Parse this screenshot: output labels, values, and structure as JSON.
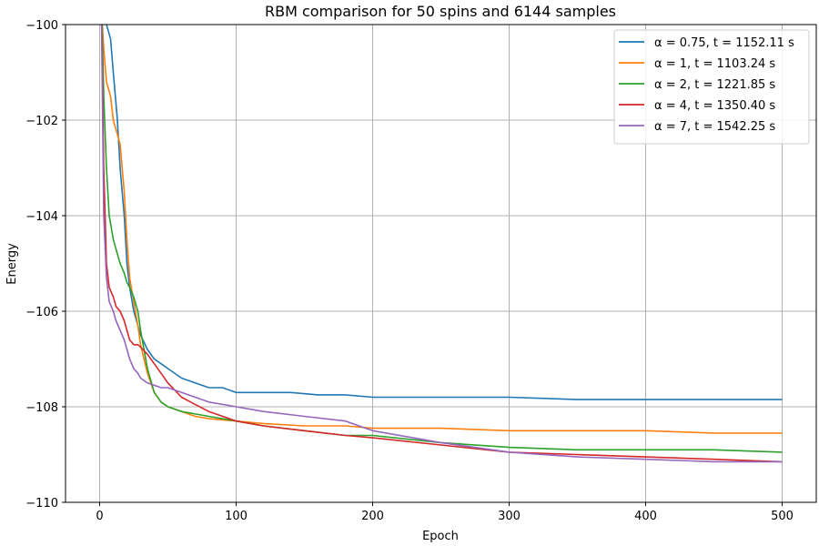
{
  "chart_data": {
    "type": "line",
    "title": "RBM comparison for 50 spins and 6144 samples",
    "xlabel": "Epoch",
    "ylabel": "Energy",
    "xlim": [
      -25,
      525
    ],
    "ylim": [
      -110,
      -100
    ],
    "xticks": [
      0,
      100,
      200,
      300,
      400,
      500
    ],
    "yticks": [
      -110,
      -108,
      -106,
      -104,
      -102,
      -100
    ],
    "xtick_labels": [
      "0",
      "100",
      "200",
      "300",
      "400",
      "500"
    ],
    "ytick_labels": [
      "−110",
      "−108",
      "−106",
      "−104",
      "−102",
      "−100"
    ],
    "grid": true,
    "legend_position": "top-right",
    "series": [
      {
        "name": "α = 0.75, t = 1152.11 s",
        "color": "#1f77b4",
        "x": [
          1,
          3,
          5,
          8,
          10,
          13,
          15,
          18,
          20,
          22,
          25,
          28,
          30,
          35,
          40,
          45,
          50,
          60,
          70,
          80,
          90,
          100,
          120,
          140,
          160,
          180,
          200,
          250,
          300,
          350,
          400,
          450,
          500
        ],
        "y": [
          -99.0,
          -99.5,
          -100.0,
          -100.3,
          -101.0,
          -102.0,
          -103.0,
          -104.0,
          -105.0,
          -105.5,
          -106.0,
          -106.3,
          -106.5,
          -106.8,
          -107.0,
          -107.1,
          -107.2,
          -107.4,
          -107.5,
          -107.6,
          -107.6,
          -107.7,
          -107.7,
          -107.7,
          -107.75,
          -107.75,
          -107.8,
          -107.8,
          -107.8,
          -107.85,
          -107.85,
          -107.85,
          -107.85
        ]
      },
      {
        "name": "α = 1, t = 1103.24 s",
        "color": "#ff7f0e",
        "x": [
          1,
          3,
          5,
          8,
          10,
          12,
          15,
          18,
          20,
          22,
          25,
          28,
          30,
          35,
          40,
          45,
          50,
          60,
          70,
          80,
          100,
          120,
          150,
          180,
          200,
          250,
          300,
          350,
          400,
          450,
          500
        ],
        "y": [
          -99.5,
          -100.5,
          -101.2,
          -101.5,
          -102.0,
          -102.2,
          -102.5,
          -103.5,
          -104.5,
          -105.3,
          -105.8,
          -106.3,
          -106.7,
          -107.3,
          -107.7,
          -107.9,
          -108.0,
          -108.1,
          -108.2,
          -108.25,
          -108.3,
          -108.35,
          -108.4,
          -108.4,
          -108.45,
          -108.45,
          -108.5,
          -108.5,
          -108.5,
          -108.55,
          -108.55
        ]
      },
      {
        "name": "α = 2, t = 1221.85 s",
        "color": "#2ca02c",
        "x": [
          1,
          3,
          5,
          7,
          10,
          12,
          15,
          18,
          20,
          22,
          25,
          28,
          30,
          35,
          40,
          45,
          50,
          60,
          70,
          80,
          100,
          120,
          150,
          180,
          200,
          250,
          300,
          350,
          400,
          450,
          500
        ],
        "y": [
          -99.0,
          -101.5,
          -103.0,
          -104.0,
          -104.5,
          -104.7,
          -105.0,
          -105.2,
          -105.4,
          -105.5,
          -105.7,
          -106.0,
          -106.4,
          -107.2,
          -107.7,
          -107.9,
          -108.0,
          -108.1,
          -108.15,
          -108.2,
          -108.3,
          -108.4,
          -108.5,
          -108.6,
          -108.6,
          -108.75,
          -108.85,
          -108.9,
          -108.9,
          -108.9,
          -108.95
        ]
      },
      {
        "name": "α = 4, t = 1350.40 s",
        "color": "#d62728",
        "x": [
          1,
          3,
          5,
          7,
          10,
          12,
          15,
          18,
          20,
          22,
          25,
          28,
          30,
          35,
          40,
          45,
          50,
          60,
          70,
          80,
          100,
          120,
          150,
          180,
          200,
          250,
          300,
          350,
          400,
          450,
          500
        ],
        "y": [
          -99.0,
          -103.0,
          -105.0,
          -105.5,
          -105.7,
          -105.9,
          -106.0,
          -106.2,
          -106.4,
          -106.6,
          -106.7,
          -106.7,
          -106.75,
          -106.9,
          -107.1,
          -107.3,
          -107.5,
          -107.8,
          -107.95,
          -108.1,
          -108.3,
          -108.4,
          -108.5,
          -108.6,
          -108.65,
          -108.8,
          -108.95,
          -109.0,
          -109.05,
          -109.1,
          -109.15
        ]
      },
      {
        "name": "α = 7, t = 1542.25 s",
        "color": "#9467bd",
        "x": [
          1,
          3,
          5,
          7,
          10,
          12,
          15,
          18,
          20,
          22,
          25,
          28,
          30,
          35,
          40,
          45,
          50,
          60,
          70,
          80,
          100,
          120,
          150,
          180,
          200,
          250,
          300,
          350,
          400,
          450,
          500
        ],
        "y": [
          -99.0,
          -104.0,
          -105.3,
          -105.8,
          -106.0,
          -106.2,
          -106.4,
          -106.6,
          -106.8,
          -107.0,
          -107.2,
          -107.3,
          -107.4,
          -107.5,
          -107.55,
          -107.6,
          -107.6,
          -107.7,
          -107.8,
          -107.9,
          -108.0,
          -108.1,
          -108.2,
          -108.3,
          -108.5,
          -108.75,
          -108.95,
          -109.05,
          -109.1,
          -109.15,
          -109.15
        ]
      }
    ]
  }
}
